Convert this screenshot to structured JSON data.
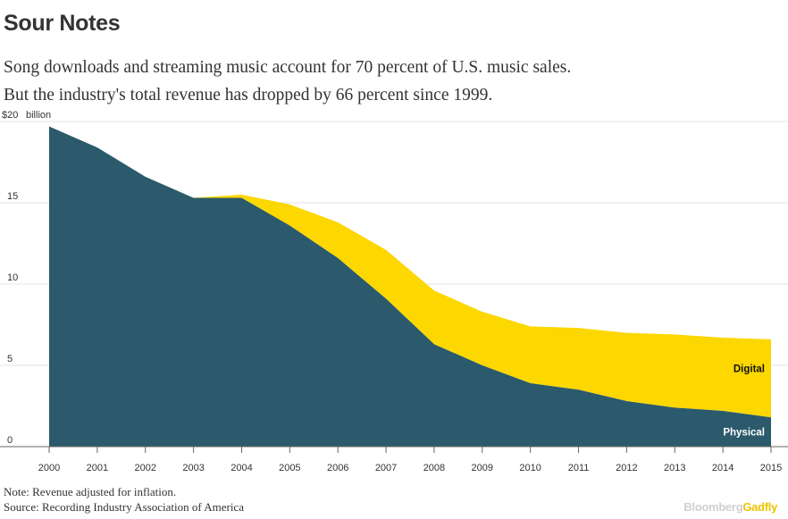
{
  "header": {
    "title": "Sour Notes",
    "subtitle_line1": "Song downloads and streaming music account for 70 percent of U.S. music sales.",
    "subtitle_line2": "But the industry's total revenue has dropped by 66 percent since 1999."
  },
  "footer": {
    "note": "Note: Revenue adjusted for inflation.",
    "source": "Source: Recording Industry Association of America",
    "brand_part1": "Bloomberg",
    "brand_part2": "Gadfly"
  },
  "chart_data": {
    "type": "area",
    "stacked": true,
    "x": [
      "2000",
      "2001",
      "2002",
      "2003",
      "2004",
      "2005",
      "2006",
      "2007",
      "2008",
      "2009",
      "2010",
      "2011",
      "2012",
      "2013",
      "2014",
      "2015"
    ],
    "series": [
      {
        "name": "Physical",
        "color": "#2a5a6b",
        "values": [
          19.7,
          18.4,
          16.6,
          15.3,
          15.3,
          13.6,
          11.6,
          9.1,
          6.3,
          5.0,
          3.9,
          3.5,
          2.8,
          2.4,
          2.2,
          1.8
        ]
      },
      {
        "name": "Digital",
        "color": "#fcd700",
        "values": [
          0,
          0,
          0,
          0,
          0.2,
          1.3,
          2.2,
          3.0,
          3.3,
          3.3,
          3.5,
          3.8,
          4.2,
          4.5,
          4.5,
          4.8
        ]
      }
    ],
    "ylim": [
      0,
      20
    ],
    "yticks": [
      0,
      5,
      10,
      15,
      20
    ],
    "ytick_labels": [
      "0",
      "5",
      "10",
      "15",
      "$20"
    ],
    "yunit_label": "billion",
    "grid": true
  }
}
